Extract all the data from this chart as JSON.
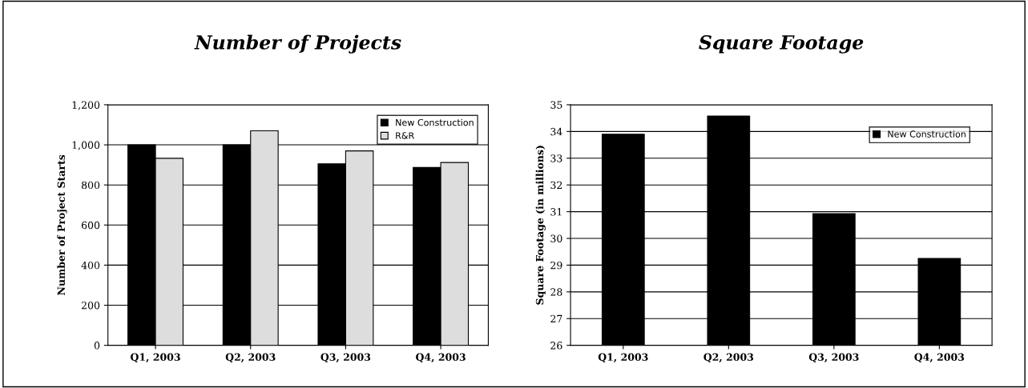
{
  "chart_data": [
    {
      "type": "bar",
      "title": "Number of Projects",
      "ylabel": "Number of Project Starts",
      "categories": [
        "Q1, 2003",
        "Q2, 2003",
        "Q3, 2003",
        "Q4, 2003"
      ],
      "series": [
        {
          "name": "New Construction",
          "color": "#000000",
          "values": [
            1000,
            1000,
            905,
            887
          ]
        },
        {
          "name": "R&R",
          "color": "#dddddd",
          "values": [
            933,
            1070,
            970,
            912
          ]
        }
      ],
      "ylim": [
        0,
        1200
      ],
      "yticks": [
        {
          "value": 0,
          "label": "0"
        },
        {
          "value": 200,
          "label": "200"
        },
        {
          "value": 400,
          "label": "400"
        },
        {
          "value": 600,
          "label": "600"
        },
        {
          "value": 800,
          "label": "800"
        },
        {
          "value": 1000,
          "label": "1,000"
        },
        {
          "value": 1200,
          "label": "1,200"
        }
      ],
      "grid": "y",
      "legend": "top right"
    },
    {
      "type": "bar",
      "title": "Square Footage",
      "ylabel": "Square Footage (in millions)",
      "categories": [
        "Q1, 2003",
        "Q2, 2003",
        "Q3, 2003",
        "Q4, 2003"
      ],
      "series": [
        {
          "name": "New Construction",
          "color": "#000000",
          "values": [
            33.9,
            34.58,
            30.93,
            29.25
          ]
        }
      ],
      "ylim": [
        26,
        35
      ],
      "yticks": [
        26,
        27,
        28,
        29,
        30,
        31,
        32,
        33,
        34,
        35
      ],
      "grid": "y",
      "legend": "top right"
    }
  ]
}
